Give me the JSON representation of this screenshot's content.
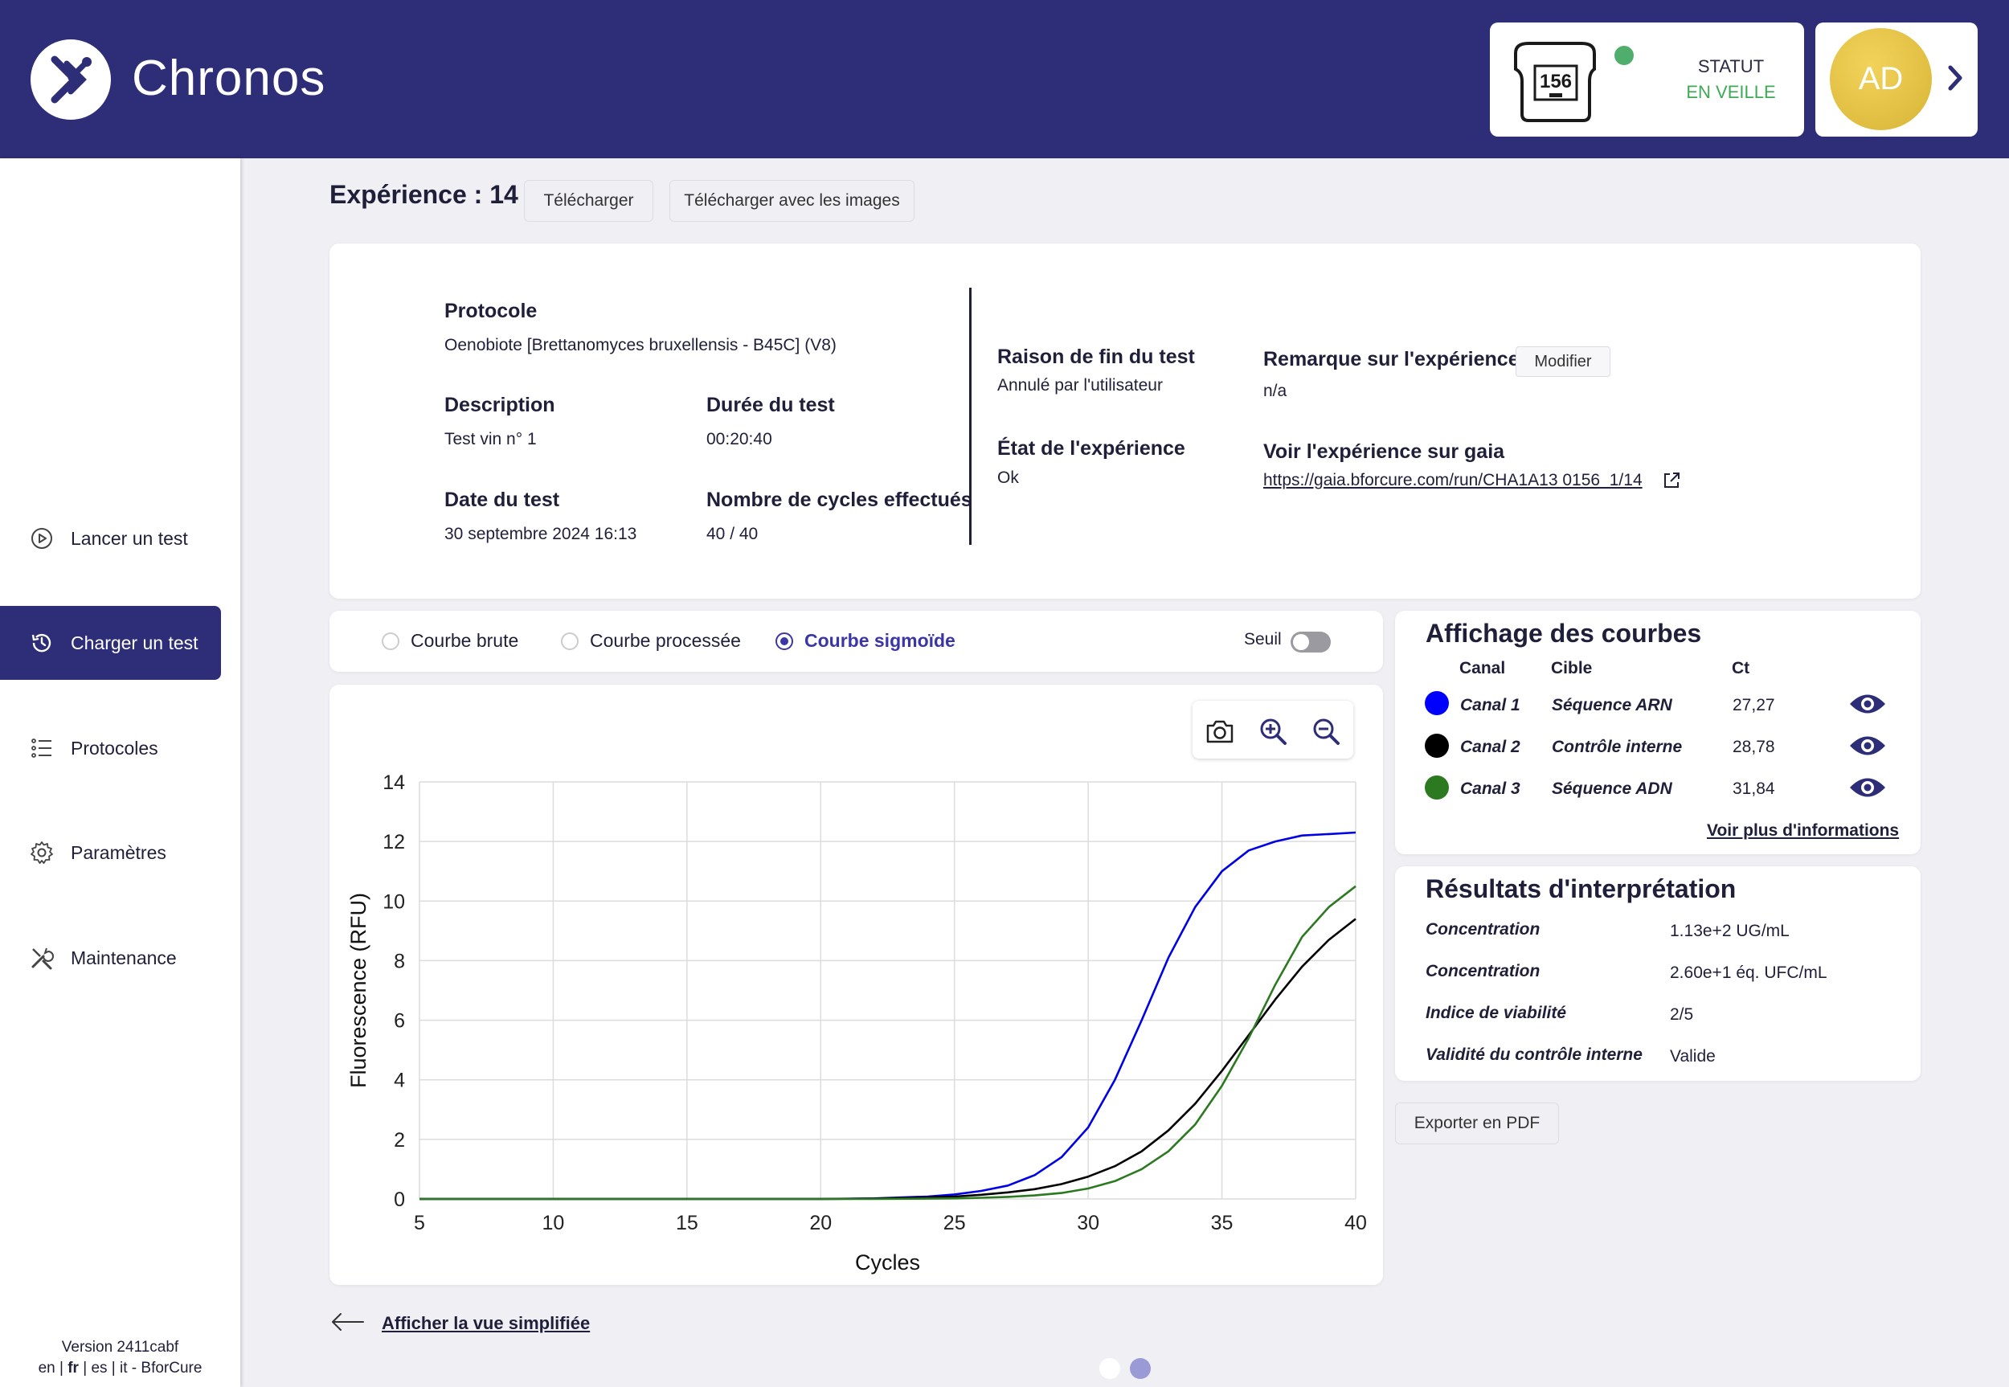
{
  "app": {
    "name": "Chronos"
  },
  "device": {
    "id": "156",
    "status_label": "STATUT",
    "status_value": "EN VEILLE"
  },
  "user": {
    "initials": "AD"
  },
  "sidebar": {
    "items": [
      {
        "label": "Lancer un test",
        "icon": "play-circle-icon"
      },
      {
        "label": "Charger un test",
        "icon": "history-icon",
        "active": true
      },
      {
        "label": "Protocoles",
        "icon": "list-icon"
      },
      {
        "label": "Paramètres",
        "icon": "gear-icon"
      },
      {
        "label": "Maintenance",
        "icon": "tools-icon"
      }
    ],
    "version": "Version 2411cabf",
    "langs": {
      "en": "en",
      "fr": "fr",
      "es": "es",
      "it": "it",
      "brand": "BforCure"
    }
  },
  "experiment": {
    "title": "Expérience : 14",
    "download_label": "Télécharger",
    "download_images_label": "Télécharger avec les images"
  },
  "info": {
    "protocol_label": "Protocole",
    "protocol_value": "Oenobiote [Brettanomyces bruxellensis - B45C] (V8)",
    "description_label": "Description",
    "description_value": "Test vin n° 1",
    "duration_label": "Durée du test",
    "duration_value": "00:20:40",
    "date_label": "Date du test",
    "date_value": "30 septembre 2024 16:13",
    "cycles_label": "Nombre de cycles effectués",
    "cycles_value": "40 / 40",
    "end_reason_label": "Raison de fin du test",
    "end_reason_value": "Annulé par l'utilisateur",
    "state_label": "État de l'expérience",
    "state_value": "Ok",
    "remark_label": "Remarque sur l'expérience",
    "remark_edit": "Modifier",
    "remark_value": "n/a",
    "gaia_label": "Voir l'expérience sur gaia",
    "gaia_link": "https://gaia.bforcure.com/run/CHA1A13 0156_1/14"
  },
  "curve_modes": {
    "raw": "Courbe brute",
    "processed": "Courbe processée",
    "sigmoid": "Courbe sigmoïde",
    "selected": "sigmoid",
    "threshold_label": "Seuil",
    "threshold_on": false
  },
  "chart_data": {
    "type": "line",
    "xlabel": "Cycles",
    "ylabel": "Fluorescence (RFU)",
    "xlim": [
      5,
      40
    ],
    "ylim": [
      0,
      14
    ],
    "xticks": [
      5,
      10,
      15,
      20,
      25,
      30,
      35,
      40
    ],
    "yticks": [
      0,
      2,
      4,
      6,
      8,
      10,
      12,
      14
    ],
    "grid": true,
    "x": [
      5,
      10,
      15,
      20,
      22,
      24,
      25,
      26,
      27,
      28,
      29,
      30,
      31,
      32,
      33,
      34,
      35,
      36,
      37,
      38,
      39,
      40
    ],
    "series": [
      {
        "name": "Canal 1",
        "color": "#0000e6",
        "values": [
          0,
          0,
          0,
          0,
          0.02,
          0.08,
          0.15,
          0.27,
          0.45,
          0.8,
          1.4,
          2.4,
          4.0,
          6.0,
          8.1,
          9.8,
          11.0,
          11.7,
          12.0,
          12.2,
          12.25,
          12.3
        ]
      },
      {
        "name": "Canal 2",
        "color": "#000000",
        "values": [
          0,
          0,
          0,
          0,
          0.01,
          0.05,
          0.08,
          0.14,
          0.22,
          0.33,
          0.5,
          0.75,
          1.1,
          1.6,
          2.3,
          3.2,
          4.3,
          5.5,
          6.7,
          7.8,
          8.7,
          9.4
        ]
      },
      {
        "name": "Canal 3",
        "color": "#2b7a1f",
        "values": [
          0,
          0,
          0,
          0,
          0,
          0.01,
          0.02,
          0.04,
          0.07,
          0.12,
          0.2,
          0.35,
          0.6,
          1.0,
          1.6,
          2.5,
          3.8,
          5.4,
          7.2,
          8.8,
          9.8,
          10.5
        ]
      }
    ]
  },
  "curves_panel": {
    "title": "Affichage des courbes",
    "col_channel": "Canal",
    "col_target": "Cible",
    "col_ct": "Ct",
    "rows": [
      {
        "channel": "Canal 1",
        "target": "Séquence ARN",
        "ct": "27,27",
        "color": "#0000ff"
      },
      {
        "channel": "Canal 2",
        "target": "Contrôle interne",
        "ct": "28,78",
        "color": "#000000"
      },
      {
        "channel": "Canal 3",
        "target": "Séquence ADN",
        "ct": "31,84",
        "color": "#2b7a1f"
      }
    ],
    "more_info": "Voir plus d'informations"
  },
  "results_panel": {
    "title": "Résultats d'interprétation",
    "rows": [
      {
        "label": "Concentration",
        "value": "1.13e+2 UG/mL"
      },
      {
        "label": "Concentration",
        "value": "2.60e+1 éq. UFC/mL"
      },
      {
        "label": "Indice de viabilité",
        "value": "2/5"
      },
      {
        "label": "Validité du contrôle interne",
        "value": "Valide"
      }
    ]
  },
  "export_pdf": "Exporter en PDF",
  "simplified_view": "Afficher la vue simplifiée",
  "colors": {
    "primary": "#2e2d78",
    "accent": "#3b36a8",
    "status_ok": "#3dab55",
    "avatar": "#e2c146"
  }
}
